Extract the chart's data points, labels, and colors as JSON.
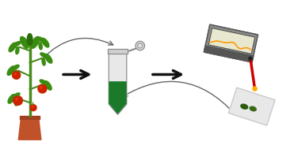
{
  "bg_color": "#ffffff",
  "fig_width": 3.76,
  "fig_height": 1.89,
  "dpi": 100,
  "plant": {
    "pot_color": "#c0522a",
    "pot_rim_color": "#a04020",
    "stem_color": "#4a8c1c",
    "leaf_color": "#3a8c10",
    "leaf_dark": "#2a6c08",
    "tomato_color": "#cc2200",
    "tomato_highlight": "#ee4422"
  },
  "tube": {
    "body_color": "#e8e8e8",
    "liquid_color": "#1a7a2a",
    "cap_color": "#d0d0d0",
    "outline_color": "#888888"
  },
  "device": {
    "body_color": "#888888",
    "body_dark": "#555555",
    "screen_color": "#e8e8d0",
    "screen_border": "#444444",
    "line_color": "#ff9900",
    "laser_color": "#cc0000",
    "laser_dot": "#ffaa00"
  },
  "tlc": {
    "plate_color": "#e8e8e8",
    "plate_border": "#cccccc",
    "spot1_color": "#2a5a10",
    "spot2_color": "#3a6a18"
  },
  "arrows": {
    "color": "#111111",
    "curve_color": "#666666"
  }
}
